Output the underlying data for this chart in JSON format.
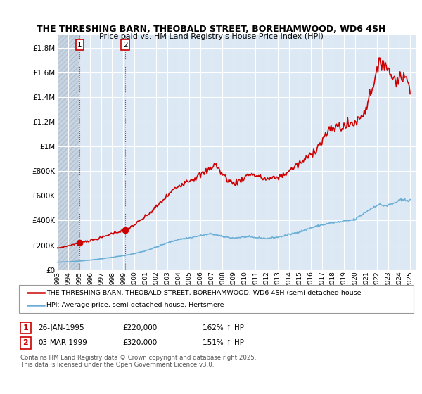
{
  "title_line1": "THE THRESHING BARN, THEOBALD STREET, BOREHAMWOOD, WD6 4SH",
  "title_line2": "Price paid vs. HM Land Registry's House Price Index (HPI)",
  "ylim": [
    0,
    1900000
  ],
  "yticks": [
    0,
    200000,
    400000,
    600000,
    800000,
    1000000,
    1200000,
    1400000,
    1600000,
    1800000
  ],
  "background_color": "#ffffff",
  "plot_bg_color": "#dce9f5",
  "hatch_bg_color": "#c8d8e8",
  "between_fill_color": "#dce9f5",
  "grid_color": "#ffffff",
  "hpi_color": "#6aaed6",
  "price_color": "#cc0000",
  "legend_label_price": "THE THRESHING BARN, THEOBALD STREET, BOREHAMWOOD, WD6 4SH (semi-detached house",
  "legend_label_hpi": "HPI: Average price, semi-detached house, Hertsmere",
  "transaction1_date": "26-JAN-1995",
  "transaction1_price": "£220,000",
  "transaction1_hpi": "162% ↑ HPI",
  "transaction2_date": "03-MAR-1999",
  "transaction2_price": "£320,000",
  "transaction2_hpi": "151% ↑ HPI",
  "footnote": "Contains HM Land Registry data © Crown copyright and database right 2025.\nThis data is licensed under the Open Government Licence v3.0.",
  "transaction1_x": 1995.07,
  "transaction1_y": 220000,
  "transaction2_x": 1999.2,
  "transaction2_y": 320000,
  "xlim_min": 1993.0,
  "xlim_max": 2025.5,
  "x_tick_years": [
    1993,
    1994,
    1995,
    1996,
    1997,
    1998,
    1999,
    2000,
    2001,
    2002,
    2003,
    2004,
    2005,
    2006,
    2007,
    2008,
    2009,
    2010,
    2011,
    2012,
    2013,
    2014,
    2015,
    2016,
    2017,
    2018,
    2019,
    2020,
    2021,
    2022,
    2023,
    2024,
    2025
  ]
}
